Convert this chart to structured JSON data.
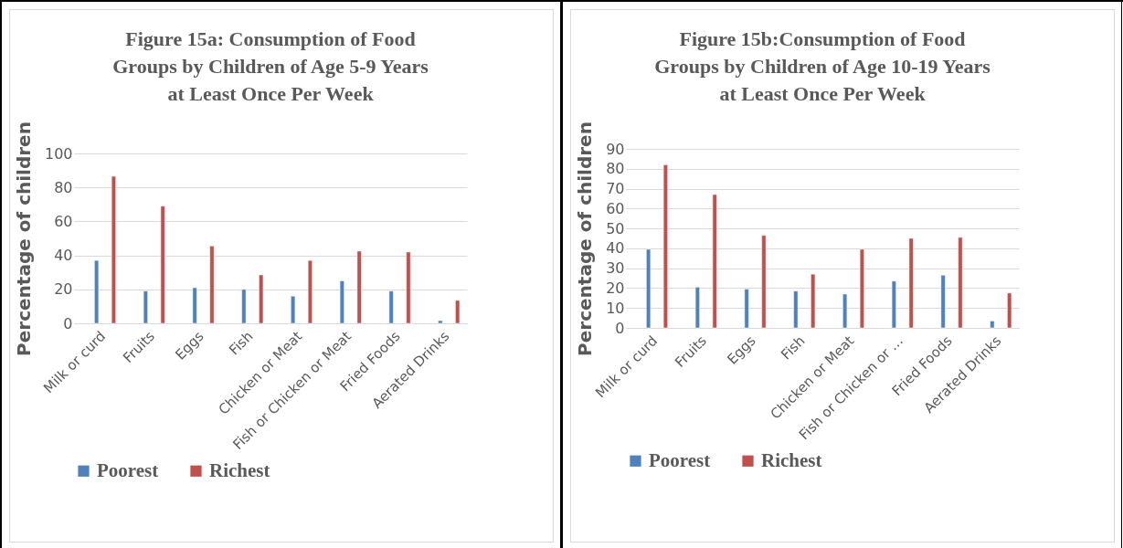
{
  "chart_data": [
    {
      "type": "bar",
      "title": "Figure 15a: Consumption of Food\nGroups by Children of Age 5-9 Years\nat Least Once Per Week",
      "ylabel": "Percentage of children",
      "categories": [
        "Milk or curd",
        "Fruits",
        "Eggs",
        "Fish",
        "Chicken or Meat",
        "Fish or Chicken or Meat",
        "Fried Foods",
        "Aerated Drinks"
      ],
      "series": [
        {
          "name": "Poorest",
          "color": "#4f81bd",
          "values": [
            37,
            19,
            21,
            20,
            16,
            25,
            19,
            1.6
          ]
        },
        {
          "name": "Richest",
          "color": "#c0504d",
          "values": [
            86.5,
            69,
            45.5,
            28.5,
            37,
            42.5,
            42,
            13.5
          ]
        }
      ],
      "ylim": [
        0,
        100
      ],
      "yticks": [
        0,
        20,
        40,
        60,
        80,
        100
      ],
      "grid": "y",
      "legend": "bottom"
    },
    {
      "type": "bar",
      "title": "Figure 15b:Consumption of Food\nGroups by Children of Age 10-19 Years\nat Least Once Per Week",
      "ylabel": "Percentage of children",
      "categories": [
        "Milk or curd",
        "Fruits",
        "Eggs",
        "Fish",
        "Chicken or Meat",
        "Fish or Chicken or …",
        "Fried Foods",
        "Aerated Drinks"
      ],
      "series": [
        {
          "name": "Poorest",
          "color": "#4f81bd",
          "values": [
            39.5,
            20.5,
            19.5,
            18.5,
            17,
            23.5,
            26.5,
            3.5
          ]
        },
        {
          "name": "Richest",
          "color": "#c0504d",
          "values": [
            82,
            67,
            46.5,
            27,
            39.5,
            45,
            45.5,
            17.5
          ]
        }
      ],
      "ylim": [
        0,
        90
      ],
      "yticks": [
        0,
        10,
        20,
        30,
        40,
        50,
        60,
        70,
        80,
        90
      ],
      "grid": "y",
      "legend": "bottom"
    }
  ]
}
